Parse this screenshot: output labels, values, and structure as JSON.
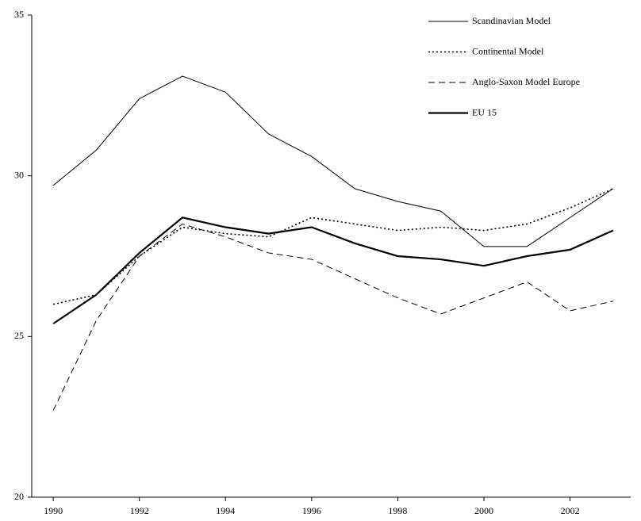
{
  "chart_data": {
    "type": "line",
    "x": [
      1990,
      1991,
      1992,
      1993,
      1994,
      1995,
      1996,
      1997,
      1998,
      1999,
      2000,
      2001,
      2002,
      2003
    ],
    "series": [
      {
        "name": "Scandinavian Model",
        "color": "#000000",
        "line_style": "solid",
        "line_width": 1,
        "values": [
          29.7,
          30.8,
          32.4,
          33.1,
          32.6,
          31.3,
          30.6,
          29.6,
          29.2,
          28.9,
          27.8,
          27.8,
          28.7,
          29.6
        ]
      },
      {
        "name": "Continental Model",
        "color": "#000000",
        "line_style": "dotted",
        "line_width": 1.6,
        "values": [
          26.0,
          26.3,
          27.5,
          28.4,
          28.2,
          28.1,
          28.7,
          28.5,
          28.3,
          28.4,
          28.3,
          28.5,
          29.0,
          29.6
        ]
      },
      {
        "name": "Anglo-Saxon Model Europe",
        "color": "#000000",
        "line_style": "dashed",
        "line_width": 1,
        "values": [
          22.7,
          25.5,
          27.5,
          28.5,
          28.1,
          27.6,
          27.4,
          26.8,
          26.2,
          25.7,
          26.2,
          26.7,
          25.8,
          26.1
        ]
      },
      {
        "name": "EU 15",
        "color": "#000000",
        "line_style": "solid",
        "line_width": 2.2,
        "values": [
          25.4,
          26.3,
          27.6,
          28.7,
          28.4,
          28.2,
          28.4,
          27.9,
          27.5,
          27.4,
          27.2,
          27.5,
          27.7,
          28.3
        ]
      }
    ],
    "xlim": [
      1989.5,
      2003.5
    ],
    "xticks": [
      1990,
      1992,
      1994,
      1996,
      1998,
      2000,
      2002
    ],
    "ylim": [
      20,
      35
    ],
    "yticks": [
      20,
      25,
      30,
      35
    ],
    "grid": false,
    "legend": "top-right"
  }
}
